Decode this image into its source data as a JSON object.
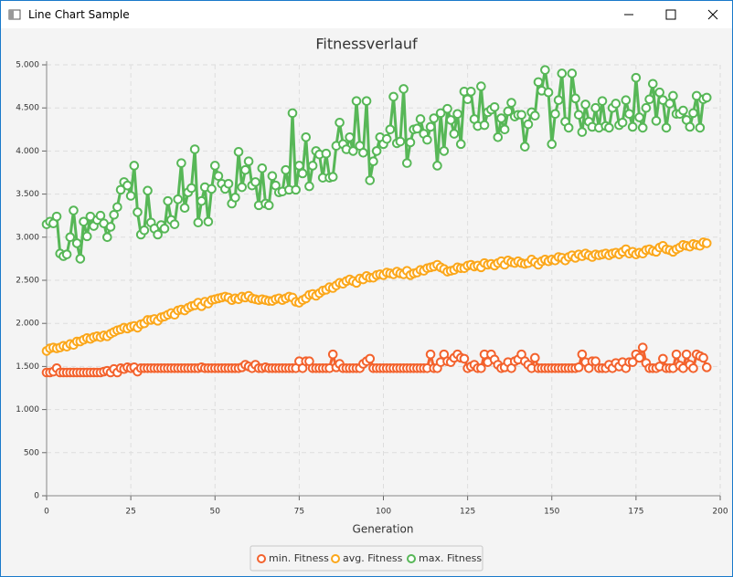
{
  "window_title": "Line Chart Sample",
  "chart_data": {
    "type": "line",
    "title": "Fitnessverlauf",
    "x_label": "Generation",
    "x": [
      0,
      1,
      2,
      3,
      4,
      5,
      6,
      7,
      8,
      9,
      10,
      11,
      12,
      13,
      14,
      15,
      16,
      17,
      18,
      19,
      20,
      21,
      22,
      23,
      24,
      25,
      26,
      27,
      28,
      29,
      30,
      31,
      32,
      33,
      34,
      35,
      36,
      37,
      38,
      39,
      40,
      41,
      42,
      43,
      44,
      45,
      46,
      47,
      48,
      49,
      50,
      51,
      52,
      53,
      54,
      55,
      56,
      57,
      58,
      59,
      60,
      61,
      62,
      63,
      64,
      65,
      66,
      67,
      68,
      69,
      70,
      71,
      72,
      73,
      74,
      75,
      76,
      77,
      78,
      79,
      80,
      81,
      82,
      83,
      84,
      85,
      86,
      87,
      88,
      89,
      90,
      91,
      92,
      93,
      94,
      95,
      96,
      97,
      98,
      99,
      100,
      101,
      102,
      103,
      104,
      105,
      106,
      107,
      108,
      109,
      110,
      111,
      112,
      113,
      114,
      115,
      116,
      117,
      118,
      119,
      120,
      121,
      122,
      123,
      124,
      125,
      126,
      127,
      128,
      129,
      130,
      131,
      132,
      133,
      134,
      135,
      136,
      137,
      138,
      139,
      140,
      141,
      142,
      143,
      144,
      145,
      146,
      147,
      148,
      149,
      150,
      151,
      152,
      153,
      154,
      155,
      156,
      157,
      158,
      159,
      160,
      161,
      162,
      163,
      164,
      165,
      166,
      167,
      168,
      169,
      170,
      171,
      172,
      173,
      174,
      175,
      176,
      177,
      178,
      179,
      180,
      181,
      182,
      183,
      184,
      185,
      186,
      187,
      188,
      189,
      190,
      191,
      192,
      193,
      194,
      195,
      196
    ],
    "series": [
      {
        "name": "min. Fitness",
        "color": "#f3622d",
        "values": [
          1430,
          1430,
          1440,
          1480,
          1430,
          1430,
          1430,
          1430,
          1430,
          1430,
          1430,
          1430,
          1430,
          1430,
          1430,
          1430,
          1430,
          1440,
          1450,
          1430,
          1470,
          1430,
          1480,
          1470,
          1490,
          1480,
          1490,
          1440,
          1480,
          1480,
          1480,
          1480,
          1480,
          1480,
          1480,
          1480,
          1480,
          1480,
          1480,
          1480,
          1480,
          1480,
          1480,
          1480,
          1480,
          1480,
          1490,
          1480,
          1480,
          1480,
          1480,
          1480,
          1480,
          1480,
          1480,
          1480,
          1480,
          1480,
          1490,
          1520,
          1500,
          1480,
          1520,
          1480,
          1480,
          1490,
          1480,
          1480,
          1480,
          1480,
          1480,
          1480,
          1480,
          1480,
          1480,
          1560,
          1480,
          1560,
          1560,
          1480,
          1480,
          1480,
          1480,
          1480,
          1480,
          1640,
          1490,
          1530,
          1480,
          1480,
          1480,
          1480,
          1480,
          1480,
          1530,
          1560,
          1590,
          1480,
          1480,
          1480,
          1480,
          1480,
          1480,
          1480,
          1480,
          1480,
          1480,
          1480,
          1480,
          1480,
          1480,
          1480,
          1480,
          1480,
          1640,
          1480,
          1480,
          1550,
          1640,
          1560,
          1550,
          1600,
          1640,
          1600,
          1590,
          1480,
          1500,
          1520,
          1480,
          1480,
          1640,
          1550,
          1640,
          1580,
          1520,
          1480,
          1490,
          1550,
          1480,
          1560,
          1580,
          1640,
          1560,
          1520,
          1480,
          1600,
          1480,
          1480,
          1480,
          1480,
          1480,
          1480,
          1480,
          1480,
          1480,
          1480,
          1480,
          1480,
          1490,
          1640,
          1550,
          1480,
          1560,
          1560,
          1480,
          1480,
          1480,
          1520,
          1480,
          1540,
          1500,
          1550,
          1480,
          1550,
          1550,
          1640,
          1600,
          1720,
          1540,
          1480,
          1480,
          1480,
          1500,
          1590,
          1480,
          1480,
          1480,
          1640,
          1510,
          1480,
          1640,
          1520,
          1480,
          1640,
          1620,
          1600,
          1490
        ]
      },
      {
        "name": "avg. Fitness",
        "color": "#fba71b",
        "values": [
          1680,
          1710,
          1720,
          1710,
          1720,
          1740,
          1730,
          1760,
          1750,
          1790,
          1790,
          1810,
          1830,
          1820,
          1840,
          1850,
          1840,
          1860,
          1850,
          1880,
          1900,
          1920,
          1930,
          1950,
          1940,
          1960,
          1970,
          1950,
          1990,
          2000,
          2040,
          2040,
          2050,
          2030,
          2070,
          2080,
          2100,
          2120,
          2100,
          2150,
          2160,
          2150,
          2180,
          2200,
          2210,
          2240,
          2200,
          2250,
          2230,
          2270,
          2280,
          2290,
          2300,
          2310,
          2300,
          2270,
          2290,
          2280,
          2310,
          2300,
          2320,
          2290,
          2280,
          2270,
          2280,
          2270,
          2260,
          2260,
          2280,
          2290,
          2270,
          2290,
          2310,
          2300,
          2250,
          2240,
          2270,
          2290,
          2330,
          2340,
          2320,
          2350,
          2380,
          2390,
          2420,
          2410,
          2440,
          2470,
          2460,
          2490,
          2510,
          2490,
          2470,
          2520,
          2510,
          2550,
          2530,
          2530,
          2560,
          2570,
          2560,
          2590,
          2580,
          2570,
          2600,
          2580,
          2570,
          2610,
          2560,
          2580,
          2590,
          2620,
          2610,
          2640,
          2650,
          2660,
          2680,
          2650,
          2630,
          2600,
          2610,
          2620,
          2650,
          2640,
          2640,
          2670,
          2680,
          2660,
          2670,
          2650,
          2700,
          2680,
          2690,
          2670,
          2700,
          2720,
          2680,
          2730,
          2710,
          2700,
          2720,
          2700,
          2690,
          2700,
          2740,
          2710,
          2680,
          2720,
          2740,
          2720,
          2740,
          2730,
          2770,
          2760,
          2730,
          2770,
          2790,
          2760,
          2800,
          2780,
          2810,
          2790,
          2770,
          2800,
          2790,
          2800,
          2810,
          2790,
          2810,
          2820,
          2800,
          2830,
          2860,
          2810,
          2830,
          2800,
          2820,
          2810,
          2850,
          2860,
          2840,
          2830,
          2880,
          2900,
          2860,
          2850,
          2830,
          2860,
          2880,
          2910,
          2900,
          2890,
          2920,
          2910,
          2900,
          2940,
          2930
        ]
      },
      {
        "name": "max. Fitness",
        "color": "#57b757",
        "values": [
          3150,
          3180,
          3160,
          3240,
          2810,
          2780,
          2800,
          3000,
          3310,
          2930,
          2750,
          3180,
          3010,
          3240,
          3130,
          3200,
          3250,
          3160,
          3000,
          3120,
          3260,
          3350,
          3550,
          3640,
          3600,
          3480,
          3830,
          3290,
          3030,
          3080,
          3540,
          3170,
          3100,
          3030,
          3140,
          3100,
          3420,
          3200,
          3150,
          3440,
          3860,
          3340,
          3520,
          3570,
          4020,
          3170,
          3420,
          3580,
          3180,
          3560,
          3830,
          3710,
          3620,
          3560,
          3620,
          3390,
          3460,
          3990,
          3580,
          3780,
          3880,
          3600,
          3640,
          3370,
          3800,
          3390,
          3370,
          3710,
          3600,
          3520,
          3530,
          3780,
          3550,
          4440,
          3550,
          3830,
          3740,
          4160,
          3590,
          3830,
          4000,
          3960,
          3690,
          3970,
          3690,
          3700,
          4060,
          4330,
          4080,
          4020,
          4160,
          4000,
          4580,
          4060,
          3980,
          4580,
          3660,
          3880,
          4000,
          4160,
          4080,
          4140,
          4250,
          4630,
          4090,
          4110,
          4720,
          3860,
          4100,
          4250,
          4260,
          4370,
          4200,
          4130,
          4280,
          4380,
          3830,
          4440,
          4000,
          4490,
          4360,
          4200,
          4430,
          4080,
          4690,
          4600,
          4690,
          4370,
          4290,
          4750,
          4300,
          4450,
          4480,
          4510,
          4160,
          4380,
          4250,
          4460,
          4560,
          4400,
          4420,
          4420,
          4050,
          4310,
          4450,
          4410,
          4800,
          4700,
          4940,
          4680,
          4080,
          4430,
          4590,
          4900,
          4340,
          4270,
          4900,
          4610,
          4420,
          4220,
          4540,
          4340,
          4280,
          4500,
          4270,
          4580,
          4290,
          4270,
          4500,
          4550,
          4300,
          4330,
          4590,
          4430,
          4280,
          4850,
          4390,
          4270,
          4500,
          4600,
          4780,
          4350,
          4680,
          4590,
          4270,
          4550,
          4640,
          4430,
          4430,
          4470,
          4360,
          4280,
          4440,
          4640,
          4270,
          4600,
          4620
        ]
      }
    ],
    "xlim": [
      0,
      200
    ],
    "xticks": [
      0,
      25,
      50,
      75,
      100,
      125,
      150,
      175,
      200
    ],
    "ylim": [
      0,
      5000
    ],
    "yticks": [
      0,
      500,
      {
        "value": 1000,
        "label": "1.000"
      },
      {
        "value": 1500,
        "label": "1.500"
      },
      {
        "value": 2000,
        "label": "2.000"
      },
      {
        "value": 2500,
        "label": "2.500"
      },
      {
        "value": 3000,
        "label": "3.000"
      },
      {
        "value": 3500,
        "label": "3.500"
      },
      {
        "value": 4000,
        "label": "4.000"
      },
      {
        "value": 4500,
        "label": "4.500"
      },
      {
        "value": 5000,
        "label": "5.000"
      }
    ],
    "grid": true,
    "legend": "bottom"
  }
}
